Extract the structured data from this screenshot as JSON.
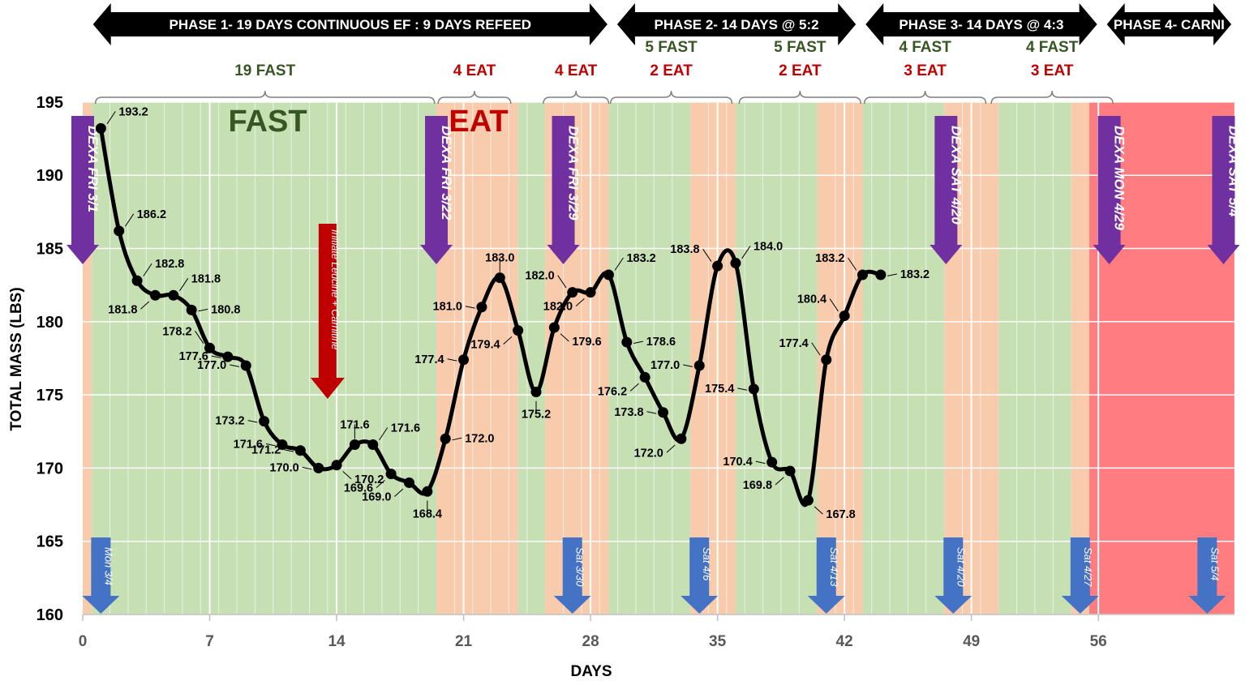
{
  "chart_data": {
    "type": "line",
    "xlabel": "DAYS",
    "ylabel": "TOTAL MASS (LBS)",
    "xlim": [
      0,
      63.5
    ],
    "ylim": [
      160,
      195
    ],
    "x_ticks": [
      0,
      7,
      14,
      21,
      28,
      35,
      42,
      49,
      56
    ],
    "y_ticks": [
      160,
      165,
      170,
      175,
      180,
      185,
      190,
      195
    ],
    "grid": "horizontal",
    "colors": {
      "fast": "#c6e0b4",
      "eat": "#f8cbad",
      "carni": "#ff7c80",
      "line": "#000000",
      "dexa_arrow": "#7030a0",
      "scan_arrow": "#4472c4",
      "leucine_arrow": "#c00000",
      "fast_text": "#375623",
      "eat_text": "#c00000"
    },
    "series": [
      {
        "points": [
          [
            1,
            193.2,
            "193.2"
          ],
          [
            2,
            186.2,
            "186.2"
          ],
          [
            3,
            182.8,
            "182.8"
          ],
          [
            4,
            181.8,
            "181.8"
          ],
          [
            5,
            181.8,
            "181.8"
          ],
          [
            6,
            180.8,
            "180.8"
          ],
          [
            7,
            178.2,
            "178.2"
          ],
          [
            8,
            177.6,
            "177.6"
          ],
          [
            9,
            177.0,
            "177.0"
          ],
          [
            10,
            173.2,
            "173.2"
          ],
          [
            11,
            171.6,
            "171.6"
          ],
          [
            12,
            171.2,
            "171.2"
          ],
          [
            13,
            170.0,
            "170.0"
          ],
          [
            14,
            170.2,
            "170.2"
          ],
          [
            15,
            171.6,
            "171.6"
          ],
          [
            16,
            171.6,
            "171.6"
          ],
          [
            17,
            169.6,
            "169.6"
          ],
          [
            18,
            169.0,
            "169.0"
          ],
          [
            19,
            168.4,
            "168.4"
          ],
          [
            20,
            172.0,
            "172.0"
          ],
          [
            21,
            177.4,
            "177.4"
          ],
          [
            22,
            181.0,
            "181.0"
          ],
          [
            23,
            183.0,
            "183.0"
          ],
          [
            24,
            179.4,
            "179.4"
          ],
          [
            25,
            175.2,
            "175.2"
          ],
          [
            26,
            179.6,
            "179.6"
          ],
          [
            27,
            182.0,
            "182.0"
          ],
          [
            28,
            182.0,
            "182.0"
          ],
          [
            29,
            183.2,
            "183.2"
          ],
          [
            30,
            178.6,
            "178.6"
          ],
          [
            31,
            176.2,
            "176.2"
          ],
          [
            32,
            173.8,
            "173.8"
          ],
          [
            33,
            172.0,
            "172.0"
          ],
          [
            34,
            177.0,
            "177.0"
          ],
          [
            35,
            183.8,
            "183.8"
          ],
          [
            36,
            184.0,
            "184.0"
          ],
          [
            37,
            175.4,
            "175.4"
          ],
          [
            38,
            170.4,
            "170.4"
          ],
          [
            39,
            169.8,
            "169.8"
          ],
          [
            40,
            167.8,
            "167.8"
          ],
          [
            41,
            177.4,
            "177.4"
          ],
          [
            42,
            180.4,
            "180.4"
          ],
          [
            43,
            183.2,
            "183.2"
          ],
          [
            44,
            183.2,
            "183.2"
          ]
        ]
      }
    ],
    "bands": [
      {
        "x0": 0,
        "x1": 0.5,
        "type": "eat"
      },
      {
        "x0": 0.5,
        "x1": 19.5,
        "type": "fast"
      },
      {
        "x0": 19.5,
        "x1": 24,
        "type": "eat"
      },
      {
        "x0": 24,
        "x1": 25.5,
        "type": "fast"
      },
      {
        "x0": 25.5,
        "x1": 29,
        "type": "eat"
      },
      {
        "x0": 29,
        "x1": 33.5,
        "type": "fast"
      },
      {
        "x0": 33.5,
        "x1": 36,
        "type": "eat"
      },
      {
        "x0": 36,
        "x1": 40.5,
        "type": "fast"
      },
      {
        "x0": 40.5,
        "x1": 43,
        "type": "eat"
      },
      {
        "x0": 43,
        "x1": 47.5,
        "type": "fast"
      },
      {
        "x0": 47.5,
        "x1": 50.5,
        "type": "eat"
      },
      {
        "x0": 50.5,
        "x1": 54.5,
        "type": "fast"
      },
      {
        "x0": 54.5,
        "x1": 55.5,
        "type": "eat"
      },
      {
        "x0": 55.5,
        "x1": 63.5,
        "type": "carni"
      }
    ],
    "phases": [
      {
        "label": "PHASE 1- 19 DAYS CONTINUOUS EF : 9 DAYS REFEED",
        "x0": 0.3,
        "x1": 29.2
      },
      {
        "label": "PHASE 2- 14 DAYS @ 5:2",
        "x0": 29.2,
        "x1": 42.9
      },
      {
        "label": "PHASE 3- 14 DAYS @ 4:3",
        "x0": 42.9,
        "x1": 56.2
      },
      {
        "label": "PHASE 4- CARNI",
        "x0": 56.2,
        "x1": 63.6
      }
    ],
    "braces": [
      {
        "x0": 0.7,
        "x1": 19.4,
        "fast": "19 FAST",
        "eat": ""
      },
      {
        "x0": 19.6,
        "x1": 23.6,
        "fast": "",
        "eat": "4 EAT"
      },
      {
        "x0": 25.4,
        "x1": 29,
        "fast": "",
        "eat": "4 EAT"
      },
      {
        "x0": 29.1,
        "x1": 35.8,
        "fast": "5 FAST",
        "eat": "2 EAT"
      },
      {
        "x0": 36.2,
        "x1": 42.9,
        "fast": "5 FAST",
        "eat": "2 EAT"
      },
      {
        "x0": 43.1,
        "x1": 49.8,
        "fast": "4 FAST",
        "eat": "3 EAT"
      },
      {
        "x0": 50.1,
        "x1": 56.8,
        "fast": "4 FAST",
        "eat": "3 EAT"
      }
    ],
    "annotations": {
      "fast_text": "FAST",
      "eat_text": "EAT",
      "leucine": "Initiate Leucine + Carnitine"
    },
    "dexa_markers": [
      {
        "x": 0,
        "label": "DEXA FRI 3/1"
      },
      {
        "x": 19.5,
        "label": "DEXA FRI 3/22"
      },
      {
        "x": 26.5,
        "label": "DEXA FRI 3/29"
      },
      {
        "x": 47.6,
        "label": "DEXA SAT 4/20"
      },
      {
        "x": 56.6,
        "label": "DEXA MON 4/29"
      },
      {
        "x": 62.9,
        "label": "DEXA SAT 5/4"
      }
    ],
    "weigh_markers": [
      {
        "x": 1,
        "label": "Mon 3/4"
      },
      {
        "x": 27,
        "label": "Sat 3/30"
      },
      {
        "x": 34,
        "label": "Sat 4/6"
      },
      {
        "x": 41,
        "label": "Sat 4/13"
      },
      {
        "x": 48,
        "label": "Sat 4/20"
      },
      {
        "x": 55,
        "label": "Sat 4/27"
      },
      {
        "x": 62,
        "label": "Sat 5/4"
      }
    ]
  }
}
